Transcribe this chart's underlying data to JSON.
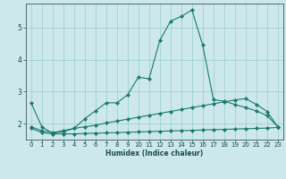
{
  "xlabel": "Humidex (Indice chaleur)",
  "xlim": [
    -0.5,
    23.5
  ],
  "ylim": [
    1.5,
    5.75
  ],
  "yticks": [
    2,
    3,
    4,
    5
  ],
  "xticks": [
    0,
    1,
    2,
    3,
    4,
    5,
    6,
    7,
    8,
    9,
    10,
    11,
    12,
    13,
    14,
    15,
    16,
    17,
    18,
    19,
    20,
    21,
    22,
    23
  ],
  "background_color": "#cce8ec",
  "grid_color": "#99cccc",
  "line_color": "#1a7a6e",
  "line1_x": [
    0,
    1,
    2,
    3,
    4,
    5,
    6,
    7,
    8,
    9,
    10,
    11,
    12,
    13,
    14,
    15,
    16,
    17,
    18,
    19,
    20,
    21,
    22,
    23
  ],
  "line1_y": [
    2.65,
    1.9,
    1.7,
    1.75,
    1.85,
    2.15,
    2.4,
    2.65,
    2.65,
    2.9,
    3.45,
    3.4,
    4.6,
    5.2,
    5.35,
    5.55,
    4.45,
    2.75,
    2.7,
    2.6,
    2.5,
    2.4,
    2.25,
    1.9
  ],
  "line2_x": [
    0,
    1,
    2,
    3,
    4,
    5,
    6,
    7,
    8,
    9,
    10,
    11,
    12,
    13,
    14,
    15,
    16,
    17,
    18,
    19,
    20,
    21,
    22,
    23
  ],
  "line2_y": [
    1.9,
    1.78,
    1.72,
    1.78,
    1.85,
    1.9,
    1.95,
    2.02,
    2.08,
    2.14,
    2.2,
    2.26,
    2.32,
    2.38,
    2.44,
    2.5,
    2.56,
    2.62,
    2.68,
    2.74,
    2.78,
    2.6,
    2.38,
    1.9
  ],
  "line3_x": [
    0,
    1,
    2,
    3,
    4,
    5,
    6,
    7,
    8,
    9,
    10,
    11,
    12,
    13,
    14,
    15,
    16,
    17,
    18,
    19,
    20,
    21,
    22,
    23
  ],
  "line3_y": [
    1.85,
    1.72,
    1.68,
    1.68,
    1.68,
    1.69,
    1.7,
    1.71,
    1.72,
    1.73,
    1.74,
    1.75,
    1.76,
    1.77,
    1.78,
    1.79,
    1.8,
    1.81,
    1.82,
    1.83,
    1.84,
    1.85,
    1.86,
    1.88
  ],
  "tick_fontsize": 5.0,
  "xlabel_fontsize": 5.5,
  "marker_size": 2.2,
  "line_width": 0.8
}
